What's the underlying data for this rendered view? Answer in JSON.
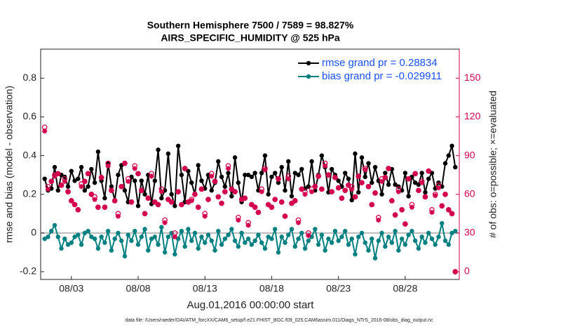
{
  "chart_data": {
    "type": "line",
    "title": "Southern Hemisphere 7500 / 7589 = 98.827%",
    "subtitle": "AIRS_SPECIFIC_HUMIDITY @ 525 hPa",
    "ylabel": "rmse and bias (model - observation)",
    "y2label": "# of obs: o=possible; ×=evaluated",
    "xlabel": "Aug.01,2016 00:00:00 start",
    "footnote": "data file: /Users/raeder/DAI/ATM_forcXX/CAM6_setup/f.e21.FHIST_BGC.f09_025.CAM6assim.011/Diags_NTrS_2016-08/obs_diag_output.nc",
    "xlim": [
      -0.3,
      31.05
    ],
    "xticks": [
      {
        "value": 2,
        "label": "08/03"
      },
      {
        "value": 7,
        "label": "08/08"
      },
      {
        "value": 12,
        "label": "08/13"
      },
      {
        "value": 17,
        "label": "08/18"
      },
      {
        "value": 22,
        "label": "08/23"
      },
      {
        "value": 27,
        "label": "08/28"
      }
    ],
    "ylim": [
      -0.24,
      0.95
    ],
    "yticks": [
      -0.2,
      0,
      0.2,
      0.4,
      0.6,
      0.8
    ],
    "y2lim": [
      -6,
      172.5
    ],
    "y2ticks": [
      0,
      30,
      60,
      90,
      120,
      150
    ],
    "y2color": "#d3004f",
    "legend": "upper right",
    "legend_text_color": "#1a50ff",
    "x": [
      0,
      0.25,
      0.5,
      0.75,
      1,
      1.25,
      1.5,
      1.75,
      2,
      2.25,
      2.5,
      2.75,
      3,
      3.25,
      3.5,
      3.75,
      4,
      4.25,
      4.5,
      4.75,
      5,
      5.25,
      5.5,
      5.75,
      6,
      6.25,
      6.5,
      6.75,
      7,
      7.25,
      7.5,
      7.75,
      8,
      8.25,
      8.5,
      8.75,
      9,
      9.25,
      9.5,
      9.75,
      10,
      10.25,
      10.5,
      10.75,
      11,
      11.25,
      11.5,
      11.75,
      12,
      12.25,
      12.5,
      12.75,
      13,
      13.25,
      13.5,
      13.75,
      14,
      14.25,
      14.5,
      14.75,
      15,
      15.25,
      15.5,
      15.75,
      16,
      16.25,
      16.5,
      16.75,
      17,
      17.25,
      17.5,
      17.75,
      18,
      18.25,
      18.5,
      18.75,
      19,
      19.25,
      19.5,
      19.75,
      20,
      20.25,
      20.5,
      20.75,
      21,
      21.25,
      21.5,
      21.75,
      22,
      22.25,
      22.5,
      22.75,
      23,
      23.25,
      23.5,
      23.75,
      24,
      24.25,
      24.5,
      24.75,
      25,
      25.25,
      25.5,
      25.75,
      26,
      26.25,
      26.5,
      26.75,
      27,
      27.25,
      27.5,
      27.75,
      28,
      28.25,
      28.5,
      28.75,
      29,
      29.25,
      29.5,
      29.75,
      30,
      30.25,
      30.5,
      30.75
    ],
    "series": [
      {
        "name": "rmse grand pr = 0.28834",
        "color": "#000000",
        "marker": "dot",
        "values": [
          0.28,
          0.22,
          0.23,
          0.34,
          0.22,
          0.3,
          0.29,
          0.24,
          0.32,
          0.27,
          0.28,
          0.34,
          0.22,
          0.24,
          0.33,
          0.26,
          0.42,
          0.27,
          0.18,
          0.36,
          0.24,
          0.17,
          0.3,
          0.35,
          0.22,
          0.16,
          0.29,
          0.27,
          0.14,
          0.27,
          0.2,
          0.3,
          0.15,
          0.27,
          0.43,
          0.18,
          0.22,
          0.41,
          0.2,
          0.14,
          0.45,
          0.3,
          0.16,
          0.32,
          0.26,
          0.2,
          0.35,
          0.27,
          0.23,
          0.3,
          0.22,
          0.26,
          0.37,
          0.29,
          0.24,
          0.31,
          0.19,
          0.39,
          0.26,
          0.16,
          0.3,
          0.3,
          0.29,
          0.31,
          0.22,
          0.31,
          0.4,
          0.2,
          0.29,
          0.31,
          0.26,
          0.34,
          0.22,
          0.37,
          0.19,
          0.31,
          0.3,
          0.33,
          0.23,
          0.24,
          0.37,
          0.22,
          0.3,
          0.4,
          0.34,
          0.21,
          0.33,
          0.3,
          0.27,
          0.24,
          0.31,
          0.28,
          0.17,
          0.41,
          0.21,
          0.39,
          0.29,
          0.36,
          0.26,
          0.34,
          0.27,
          0.2,
          0.31,
          0.25,
          0.33,
          0.25,
          0.24,
          0.22,
          0.31,
          0.19,
          0.29,
          0.26,
          0.25,
          0.31,
          0.21,
          0.28,
          0.31,
          0.23,
          0.26,
          0.24,
          0.36,
          0.4,
          0.45,
          0.34
        ]
      },
      {
        "name": "bias grand pr = -0.029911",
        "color": "#008080",
        "marker": "dot",
        "values": [
          -0.03,
          -0.02,
          0.01,
          0.04,
          -0.02,
          -0.08,
          -0.03,
          -0.06,
          -0.05,
          -0.02,
          -0.01,
          -0.06,
          0.0,
          0.01,
          -0.02,
          -0.03,
          -0.08,
          -0.02,
          -0.05,
          0.01,
          -0.09,
          -0.03,
          0.0,
          -0.04,
          -0.12,
          -0.01,
          -0.04,
          0.01,
          -0.06,
          -0.02,
          0.02,
          -0.09,
          -0.03,
          -0.02,
          -0.06,
          0.03,
          -0.1,
          -0.02,
          0.0,
          -0.11,
          -0.03,
          0.01,
          -0.07,
          0.02,
          -0.04,
          0.0,
          -0.08,
          -0.02,
          -0.05,
          -0.01,
          -0.04,
          -0.09,
          0.01,
          -0.06,
          -0.03,
          -0.01,
          0.02,
          -0.04,
          -0.07,
          0.0,
          -0.05,
          -0.03,
          -0.06,
          -0.04,
          -0.01,
          -0.05,
          -0.08,
          -0.02,
          -0.03,
          0.02,
          -0.1,
          -0.02,
          -0.05,
          -0.01,
          0.02,
          -0.07,
          -0.03,
          0.0,
          -0.08,
          -0.04,
          -0.02,
          0.02,
          -0.06,
          -0.01,
          -0.09,
          -0.03,
          -0.05,
          0.01,
          -0.04,
          -0.02,
          0.01,
          -0.06,
          -0.03,
          -0.11,
          -0.02,
          0.0,
          -0.05,
          -0.09,
          -0.03,
          -0.13,
          -0.04,
          0.0,
          -0.07,
          -0.02,
          -0.05,
          0.01,
          -0.09,
          -0.03,
          -0.06,
          -0.01,
          0.01,
          -0.04,
          -0.08,
          -0.02,
          -0.05,
          0.0,
          -0.03,
          -0.06,
          -0.02,
          0.05,
          -0.04,
          -0.06,
          0.0,
          0.01
        ]
      },
      {
        "color": "#d3004f",
        "axis": "y2",
        "marker": "circle",
        "values": [
          112,
          66,
          70,
          75,
          76,
          67,
          72,
          62,
          55,
          52,
          48,
          68,
          70,
          76,
          60,
          58,
          50,
          73,
          50,
          84,
          63,
          55,
          45,
          66,
          84,
          72,
          54,
          82,
          76,
          63,
          45,
          57,
          76,
          54,
          52,
          64,
          40,
          56,
          54,
          30,
          62,
          52,
          80,
          54,
          56,
          60,
          50,
          64,
          45,
          56,
          76,
          70,
          58,
          53,
          62,
          82,
          64,
          62,
          42,
          56,
          57,
          38,
          52,
          50,
          46,
          64,
          80,
          52,
          50,
          56,
          72,
          54,
          43,
          74,
          53,
          55,
          40,
          64,
          62,
          30,
          64,
          66,
          74,
          64,
          84,
          75,
          62,
          73,
          65,
          57,
          63,
          67,
          66,
          58,
          74,
          69,
          80,
          66,
          52,
          61,
          42,
          72,
          73,
          80,
          55,
          44,
          64,
          48,
          37,
          72,
          52,
          76,
          63,
          70,
          58,
          78,
          48,
          60,
          67,
          51,
          60,
          48,
          45,
          0
        ]
      },
      {
        "color": "#d3004f",
        "axis": "y2",
        "marker": "asterisk",
        "values": [
          109,
          64,
          70,
          74,
          76,
          67,
          70,
          62,
          55,
          52,
          48,
          66,
          70,
          76,
          60,
          56,
          50,
          73,
          50,
          82,
          63,
          55,
          43,
          66,
          84,
          70,
          54,
          80,
          76,
          63,
          45,
          57,
          74,
          54,
          52,
          62,
          38,
          56,
          54,
          27,
          62,
          52,
          80,
          54,
          55,
          60,
          50,
          64,
          43,
          56,
          74,
          70,
          58,
          53,
          62,
          80,
          64,
          62,
          40,
          56,
          57,
          36,
          52,
          50,
          46,
          62,
          79,
          52,
          50,
          56,
          72,
          54,
          43,
          72,
          53,
          55,
          38,
          64,
          60,
          28,
          62,
          66,
          74,
          64,
          82,
          75,
          62,
          73,
          65,
          57,
          63,
          67,
          64,
          58,
          74,
          69,
          79,
          66,
          52,
          61,
          40,
          70,
          73,
          80,
          55,
          44,
          62,
          48,
          37,
          72,
          50,
          76,
          63,
          69,
          58,
          78,
          46,
          59,
          65,
          51,
          60,
          48,
          45,
          0
        ]
      }
    ]
  }
}
